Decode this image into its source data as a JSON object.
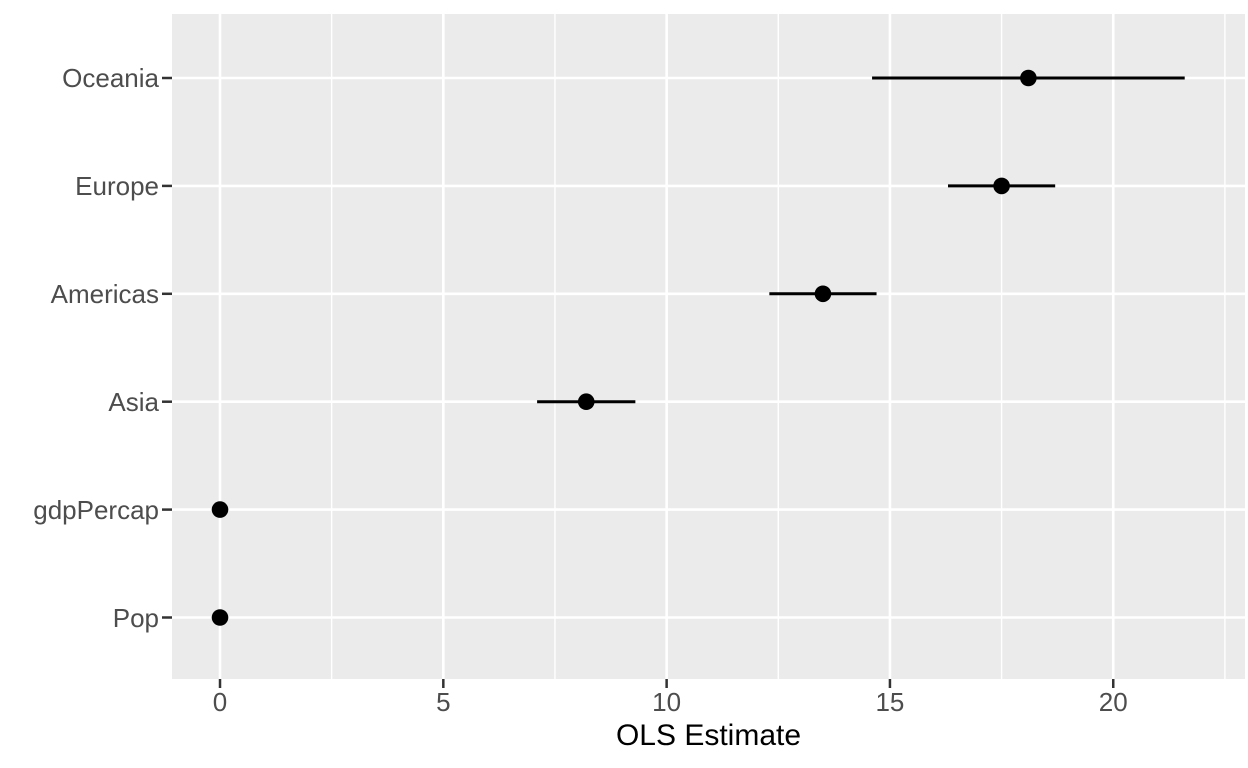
{
  "figure": {
    "background": "#FFFFFF",
    "panel_background": "#EBEBEB",
    "grid_color": "#FFFFFF",
    "axis_text_color": "#4D4D4D",
    "axis_title_color": "#000000",
    "tick_color": "#333333",
    "point_color": "#000000"
  },
  "chart_data": {
    "type": "scatter",
    "subtype": "dot-and-whisker coefficient plot",
    "title": "",
    "xlabel": "OLS Estimate",
    "ylabel": "",
    "categories": [
      "Oceania",
      "Europe",
      "Americas",
      "Asia",
      "gdpPercap",
      "Pop"
    ],
    "series": [
      {
        "name": "coefficients",
        "points": [
          {
            "term": "Oceania",
            "estimate": 18.1,
            "conf_low": 14.6,
            "conf_high": 21.6
          },
          {
            "term": "Europe",
            "estimate": 17.5,
            "conf_low": 16.3,
            "conf_high": 18.7
          },
          {
            "term": "Americas",
            "estimate": 13.5,
            "conf_low": 12.3,
            "conf_high": 14.7
          },
          {
            "term": "Asia",
            "estimate": 8.2,
            "conf_low": 7.1,
            "conf_high": 9.3
          },
          {
            "term": "gdpPercap",
            "estimate": 0.0,
            "conf_low": 0.0,
            "conf_high": 0.0
          },
          {
            "term": "Pop",
            "estimate": 0.0,
            "conf_low": 0.0,
            "conf_high": 0.0
          }
        ]
      }
    ],
    "xlim": [
      -1.075,
      22.95
    ],
    "x_ticks": [
      0,
      5,
      10,
      15,
      20
    ],
    "x_minor_ticks": [
      2.5,
      7.5,
      12.5,
      17.5,
      22.5
    ],
    "grid": "on",
    "legend": "none"
  }
}
